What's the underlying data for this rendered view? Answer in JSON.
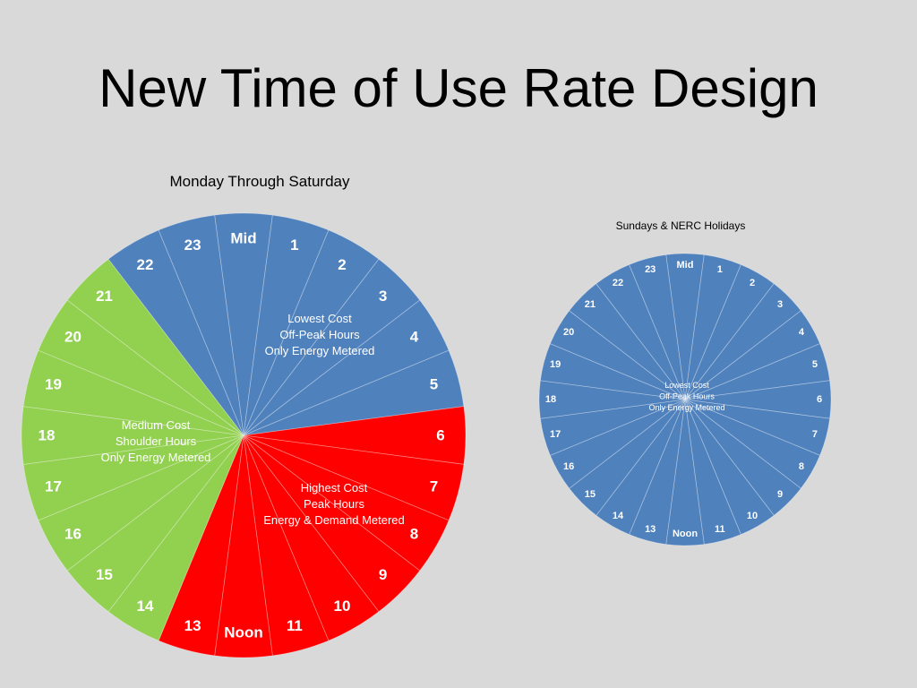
{
  "slide": {
    "title": "New Time of Use Rate Design"
  },
  "colors": {
    "background": "#d9d9d9",
    "off_peak": "#4f81bd",
    "peak": "#ff0000",
    "shoulder": "#92d050",
    "label_text": "#ffffff"
  },
  "chart_data": [
    {
      "type": "pie",
      "title": "Monday Through Saturday",
      "categories": [
        "Mid",
        "1",
        "2",
        "3",
        "4",
        "5",
        "6",
        "7",
        "8",
        "9",
        "10",
        "11",
        "Noon",
        "13",
        "14",
        "15",
        "16",
        "17",
        "18",
        "19",
        "20",
        "21",
        "22",
        "23"
      ],
      "values": [
        1,
        1,
        1,
        1,
        1,
        1,
        1,
        1,
        1,
        1,
        1,
        1,
        1,
        1,
        1,
        1,
        1,
        1,
        1,
        1,
        1,
        1,
        1,
        1
      ],
      "periods": [
        {
          "label": [
            "Lowest Cost",
            "Off-Peak Hours",
            "Only Energy Metered"
          ],
          "color": "#4f81bd",
          "hours": [
            "Mid",
            "1",
            "2",
            "3",
            "4",
            "5",
            "22",
            "23"
          ]
        },
        {
          "label": [
            "Highest Cost",
            "Peak Hours",
            "Energy & Demand Metered"
          ],
          "color": "#ff0000",
          "hours": [
            "6",
            "7",
            "8",
            "9",
            "10",
            "11",
            "Noon",
            "13"
          ]
        },
        {
          "label": [
            "Medium Cost",
            "Shoulder Hours",
            "Only Energy  Metered"
          ],
          "color": "#92d050",
          "hours": [
            "14",
            "15",
            "16",
            "17",
            "18",
            "19",
            "20",
            "21"
          ]
        }
      ]
    },
    {
      "type": "pie",
      "title": "Sundays & NERC Holidays",
      "categories": [
        "Mid",
        "1",
        "2",
        "3",
        "4",
        "5",
        "6",
        "7",
        "8",
        "9",
        "10",
        "11",
        "Noon",
        "13",
        "14",
        "15",
        "16",
        "17",
        "18",
        "19",
        "20",
        "21",
        "22",
        "23"
      ],
      "values": [
        1,
        1,
        1,
        1,
        1,
        1,
        1,
        1,
        1,
        1,
        1,
        1,
        1,
        1,
        1,
        1,
        1,
        1,
        1,
        1,
        1,
        1,
        1,
        1
      ],
      "periods": [
        {
          "label": [
            "Lowest Cost",
            "Off-Peak Hours",
            "Only Energy Metered"
          ],
          "color": "#4f81bd",
          "hours": [
            "Mid",
            "1",
            "2",
            "3",
            "4",
            "5",
            "6",
            "7",
            "8",
            "9",
            "10",
            "11",
            "Noon",
            "13",
            "14",
            "15",
            "16",
            "17",
            "18",
            "19",
            "20",
            "21",
            "22",
            "23"
          ]
        }
      ]
    }
  ]
}
